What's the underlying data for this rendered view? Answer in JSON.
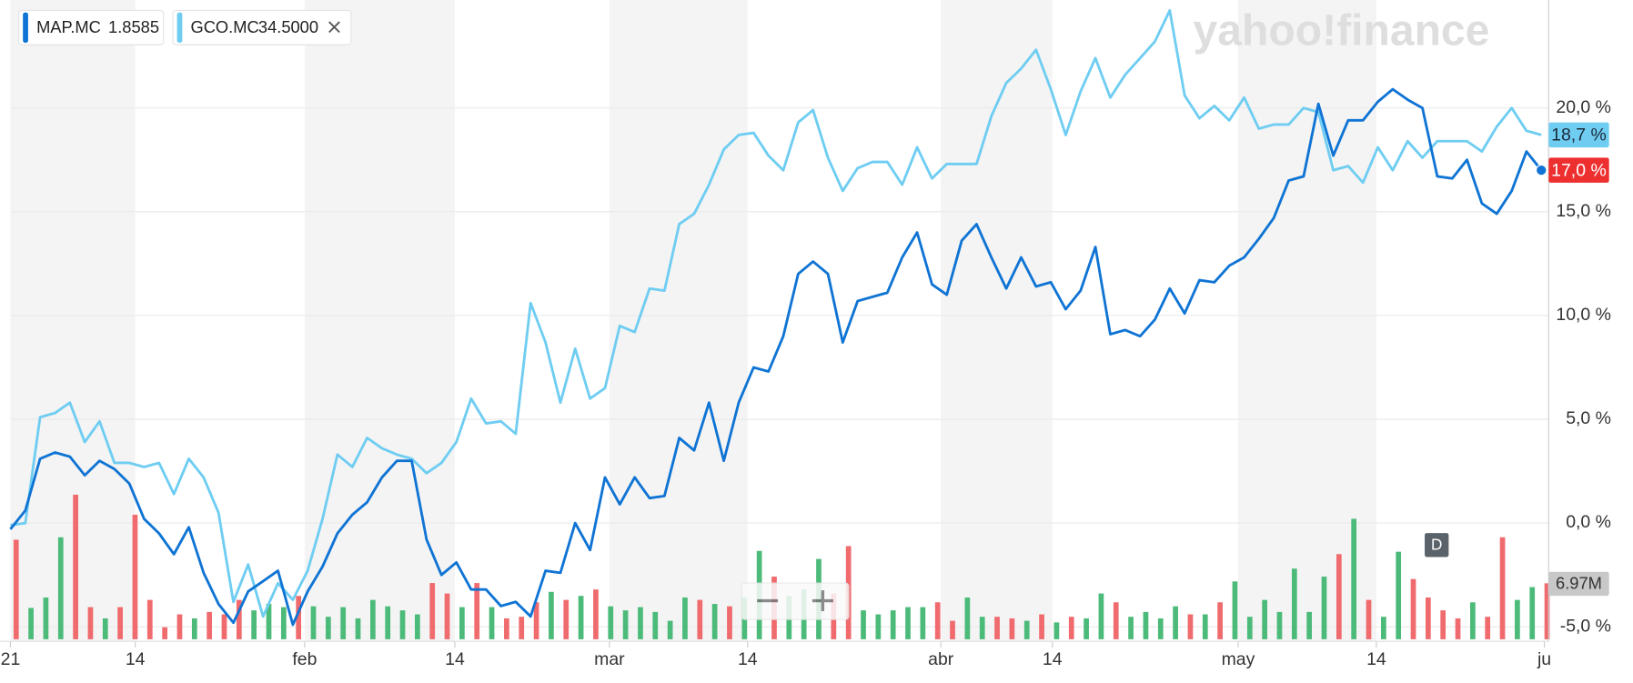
{
  "chart_data": {
    "type": "line",
    "logo": "yahoo!finance",
    "interval_badge": "D",
    "grid": true,
    "xlim": [
      0,
      103
    ],
    "xticks": [
      {
        "value": 0,
        "label": "21"
      },
      {
        "value": 8.4,
        "label": "14"
      },
      {
        "value": 19.8,
        "label": "feb"
      },
      {
        "value": 29.9,
        "label": "14"
      },
      {
        "value": 40.3,
        "label": "mar"
      },
      {
        "value": 49.6,
        "label": "14"
      },
      {
        "value": 62.6,
        "label": "abr"
      },
      {
        "value": 70.1,
        "label": "14"
      },
      {
        "value": 82.6,
        "label": "may"
      },
      {
        "value": 91.9,
        "label": "14"
      },
      {
        "value": 103.2,
        "label": "ju"
      }
    ],
    "ylim": [
      -5.6,
      25.2
    ],
    "yticks": [
      {
        "value": 20,
        "label": "20,0 %"
      },
      {
        "value": 15,
        "label": "15,0 %"
      },
      {
        "value": 10,
        "label": "10,0 %"
      },
      {
        "value": 5,
        "label": "5,0 %"
      },
      {
        "value": 0,
        "label": "0,0 %"
      },
      {
        "value": -5,
        "label": "-5,0 %"
      }
    ],
    "series": [
      {
        "name": "MAP.MC",
        "price": "1.8585",
        "color": "#0f74d4",
        "last_label": "17,0 %",
        "label_color": "#ee2f2f",
        "values": [
          -0.3,
          0.6,
          3.1,
          3.4,
          3.2,
          2.3,
          3.0,
          2.6,
          1.9,
          0.2,
          -0.5,
          -1.5,
          -0.2,
          -2.4,
          -3.9,
          -4.8,
          -3.3,
          -2.8,
          -2.3,
          -4.9,
          -3.3,
          -2.1,
          -0.5,
          0.4,
          1.0,
          2.2,
          3.0,
          3.0,
          -0.8,
          -2.5,
          -1.9,
          -3.2,
          -3.2,
          -4.0,
          -3.8,
          -4.5,
          -2.3,
          -2.4,
          0.0,
          -1.3,
          2.2,
          0.9,
          2.2,
          1.2,
          1.3,
          4.1,
          3.5,
          5.8,
          3.0,
          5.8,
          7.5,
          7.3,
          9.0,
          12.0,
          12.6,
          12.0,
          8.7,
          10.7,
          10.9,
          11.1,
          12.8,
          14.0,
          11.5,
          11.0,
          13.6,
          14.4,
          12.8,
          11.3,
          12.8,
          11.4,
          11.6,
          10.3,
          11.2,
          13.3,
          9.1,
          9.3,
          9.0,
          9.8,
          11.3,
          10.1,
          11.7,
          11.6,
          12.4,
          12.8,
          13.7,
          14.7,
          16.5,
          16.7,
          20.2,
          17.7,
          19.4,
          19.4,
          20.3,
          20.9,
          20.4,
          20.0,
          16.7,
          16.6,
          17.5,
          15.4,
          14.9,
          16.0,
          17.9,
          17.0
        ]
      },
      {
        "name": "GCO.MC",
        "price": "34.5000",
        "color": "#6fcdf2",
        "last_label": "18,7 %",
        "label_color": "#6fcdf2",
        "values": [
          -0.1,
          0.0,
          5.1,
          5.3,
          5.8,
          3.9,
          4.9,
          2.9,
          2.9,
          2.7,
          2.9,
          1.4,
          3.1,
          2.2,
          0.5,
          -3.8,
          -2.0,
          -4.5,
          -2.9,
          -3.7,
          -2.3,
          0.2,
          3.3,
          2.7,
          4.1,
          3.6,
          3.3,
          3.1,
          2.4,
          2.9,
          3.9,
          6.0,
          4.8,
          4.9,
          4.3,
          10.6,
          8.7,
          5.8,
          8.4,
          6.0,
          6.5,
          9.5,
          9.2,
          11.3,
          11.2,
          14.4,
          14.9,
          16.3,
          18.0,
          18.7,
          18.8,
          17.7,
          17.0,
          19.3,
          19.9,
          17.6,
          16.0,
          17.1,
          17.4,
          17.4,
          16.3,
          18.1,
          16.6,
          17.3,
          17.3,
          17.3,
          19.6,
          21.2,
          21.9,
          22.8,
          20.9,
          18.7,
          20.8,
          22.4,
          20.5,
          21.6,
          22.4,
          23.2,
          24.7,
          20.6,
          19.5,
          20.1,
          19.4,
          20.5,
          19.0,
          19.2,
          19.2,
          20.0,
          19.8,
          17.0,
          17.2,
          16.4,
          18.1,
          17.0,
          18.4,
          17.6,
          18.4,
          18.4,
          18.4,
          17.9,
          19.1,
          20.0,
          18.9,
          18.7
        ]
      }
    ],
    "volume": {
      "vlim": [
        0,
        14
      ],
      "last_label": "6.97M",
      "up_color": "#4cbb7a",
      "down_color": "#ef6b6e",
      "values": [
        12.4,
        3.9,
        5.2,
        12.7,
        18,
        4,
        2.6,
        4,
        15.5,
        4.9,
        1.5,
        3.1,
        2.6,
        3.4,
        3.1,
        4.9,
        3.6,
        4.4,
        4,
        5.4,
        4.1,
        2.8,
        4,
        2.6,
        4.9,
        4.1,
        3.6,
        3.1,
        7,
        5.7,
        4,
        7,
        4,
        2.6,
        2.8,
        4.6,
        5.9,
        4.9,
        5.4,
        6.2,
        4.1,
        3.6,
        4,
        3.4,
        2.3,
        5.2,
        4.9,
        4.4,
        4.1,
        5.2,
        11,
        7.8,
        5.4,
        6.2,
        10,
        5.7,
        11.6,
        3.6,
        3.1,
        3.6,
        4,
        4,
        4.6,
        2.3,
        5.2,
        2.8,
        2.8,
        2.6,
        2.3,
        3.1,
        2.1,
        2.8,
        2.6,
        5.7,
        4.6,
        2.8,
        3.4,
        2.6,
        4.1,
        3.1,
        3.1,
        4.6,
        7.2,
        2.8,
        4.9,
        3.4,
        8.8,
        3.4,
        7.8,
        10.6,
        15,
        4.9,
        2.8,
        10.9,
        7.5,
        5.2,
        3.6,
        2.6,
        4.6,
        2.8,
        12.7,
        4.9,
        6.5,
        6.97
      ],
      "up": [
        false,
        true,
        true,
        true,
        false,
        false,
        true,
        false,
        false,
        false,
        false,
        false,
        true,
        false,
        false,
        false,
        true,
        true,
        true,
        false,
        true,
        true,
        true,
        true,
        true,
        true,
        true,
        true,
        false,
        false,
        true,
        false,
        true,
        false,
        false,
        false,
        true,
        false,
        true,
        false,
        true,
        true,
        true,
        true,
        true,
        true,
        false,
        true,
        false,
        true,
        true,
        false,
        true,
        true,
        true,
        false,
        false,
        true,
        true,
        true,
        true,
        true,
        false,
        false,
        true,
        true,
        false,
        false,
        true,
        false,
        true,
        false,
        true,
        true,
        false,
        true,
        true,
        true,
        true,
        false,
        true,
        false,
        true,
        true,
        true,
        true,
        true,
        true,
        true,
        false,
        true,
        false,
        true,
        true,
        false,
        false,
        false,
        false,
        true,
        false,
        false,
        true,
        true,
        false
      ]
    }
  }
}
